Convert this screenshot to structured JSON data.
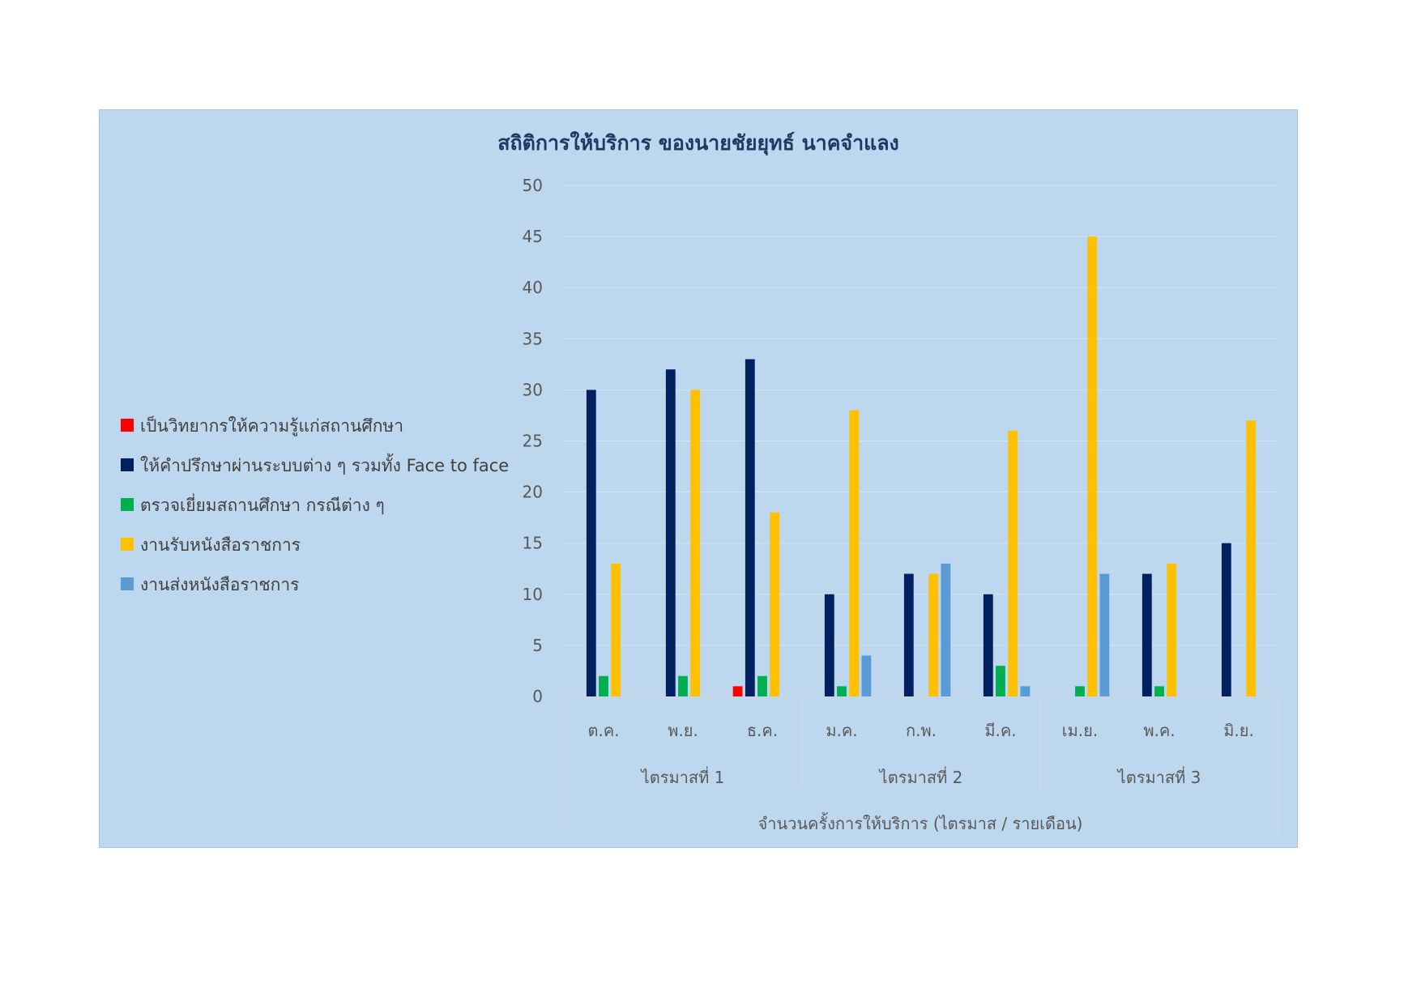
{
  "chart_data": {
    "type": "bar",
    "title": "สถิติการให้บริการ ของนายชัยยุทธ์ นาคจำแลง",
    "xlabel": "จำนวนครั้งการให้บริการ (ไตรมาส / รายเดือน)",
    "ylabel": "",
    "ylim": [
      0,
      50
    ],
    "yticks": [
      0,
      5,
      10,
      15,
      20,
      25,
      30,
      35,
      40,
      45,
      50
    ],
    "grid": true,
    "legend_position": "left",
    "groups": [
      {
        "label": "ไตรมาสที่ 1",
        "categories": [
          "ต.ค.",
          "พ.ย.",
          "ธ.ค."
        ]
      },
      {
        "label": "ไตรมาสที่ 2",
        "categories": [
          "ม.ค.",
          "ก.พ.",
          "มี.ค."
        ]
      },
      {
        "label": "ไตรมาสที่ 3",
        "categories": [
          "เม.ย.",
          "พ.ค.",
          "มิ.ย."
        ]
      }
    ],
    "categories": [
      "ต.ค.",
      "พ.ย.",
      "ธ.ค.",
      "ม.ค.",
      "ก.พ.",
      "มี.ค.",
      "เม.ย.",
      "พ.ค.",
      "มิ.ย."
    ],
    "series": [
      {
        "name": "เป็นวิทยากรให้ความรู้แก่สถานศึกษา",
        "color": "#ff0000",
        "values": [
          0,
          0,
          1,
          0,
          0,
          0,
          0,
          0,
          0
        ]
      },
      {
        "name": "ให้คำปรึกษาผ่านระบบต่าง ๆ รวมทั้ง Face to face",
        "color": "#002060",
        "values": [
          30,
          32,
          33,
          10,
          12,
          10,
          0,
          12,
          15
        ]
      },
      {
        "name": "ตรวจเยี่ยมสถานศึกษา กรณีต่าง ๆ",
        "color": "#00b050",
        "values": [
          2,
          2,
          2,
          1,
          0,
          3,
          1,
          1,
          0
        ]
      },
      {
        "name": "งานรับหนังสือราชการ",
        "color": "#ffc000",
        "values": [
          13,
          30,
          18,
          28,
          12,
          26,
          45,
          13,
          27
        ]
      },
      {
        "name": "งานส่งหนังสือราชการ",
        "color": "#5b9bd5",
        "values": [
          0,
          0,
          0,
          4,
          13,
          1,
          12,
          0,
          0
        ]
      }
    ]
  }
}
